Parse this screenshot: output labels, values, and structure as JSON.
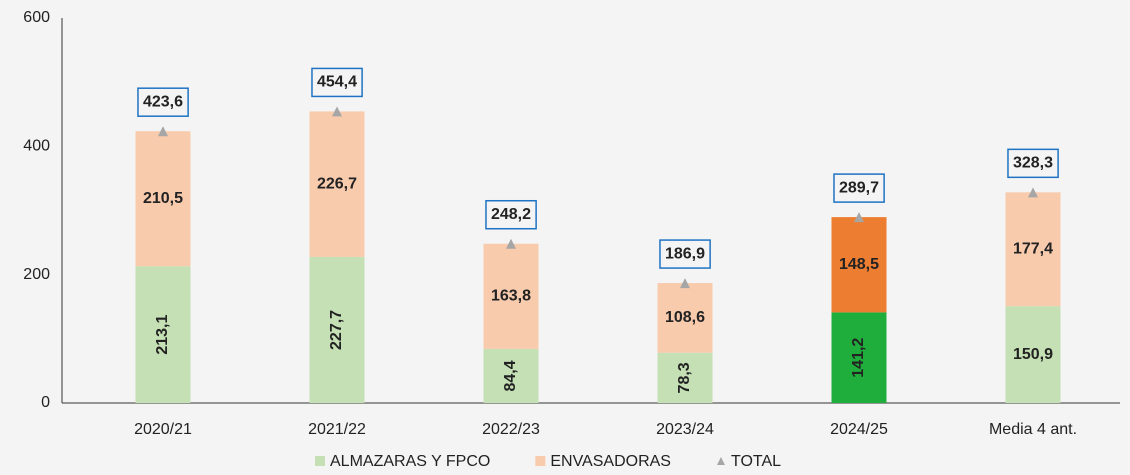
{
  "chart_data": {
    "type": "stacked_bar",
    "categories": [
      "2020/21",
      "2021/22",
      "2022/23",
      "2023/24",
      "2024/25",
      "Media 4 ant."
    ],
    "series": [
      {
        "name": "ALMAZARAS Y FPCO",
        "color": "#c5e0b4",
        "colors": [
          "#c5e0b4",
          "#c5e0b4",
          "#c5e0b4",
          "#c5e0b4",
          "#1fae3c",
          "#c5e0b4"
        ],
        "values": [
          213.1,
          227.7,
          84.4,
          78.3,
          141.2,
          150.9
        ],
        "value_labels": [
          "213,1",
          "227,7",
          "84,4",
          "78,3",
          "141,2",
          "150,9"
        ]
      },
      {
        "name": "ENVASADORAS",
        "color": "#f8cbad",
        "colors": [
          "#f8cbad",
          "#f8cbad",
          "#f8cbad",
          "#f8cbad",
          "#ed7d31",
          "#f8cbad"
        ],
        "values": [
          210.5,
          226.7,
          163.8,
          108.6,
          148.5,
          177.4
        ],
        "value_labels": [
          "210,5",
          "226,7",
          "163,8",
          "108,6",
          "148,5",
          "177,4"
        ]
      },
      {
        "name": "TOTAL",
        "color": "#a6a6a6",
        "marker": "triangle",
        "label_color": "#1f73c4",
        "values": [
          423.6,
          454.4,
          248.2,
          186.9,
          289.7,
          328.3
        ],
        "value_labels": [
          "423,6",
          "454,4",
          "248,2",
          "186,9",
          "289,7",
          "328,3"
        ]
      }
    ],
    "ylim": [
      0,
      600
    ],
    "yticks": [
      0,
      200,
      400,
      600
    ],
    "grid": false,
    "legend": "bottom"
  }
}
